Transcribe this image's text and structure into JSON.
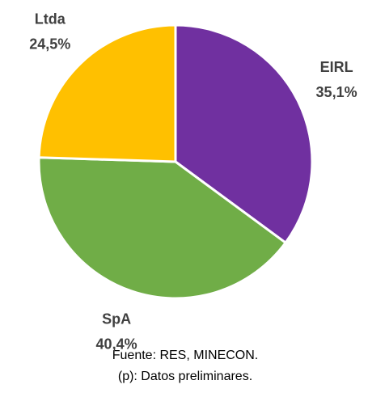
{
  "chart_data": {
    "type": "pie",
    "categories": [
      "EIRL",
      "SpA",
      "Ltda"
    ],
    "values": [
      35.1,
      40.4,
      24.5
    ],
    "value_labels": [
      "35,1%",
      "40,4%",
      "24,5%"
    ],
    "colors": [
      "#7030a0",
      "#70ad47",
      "#ffc000"
    ],
    "notes": [
      "Fuente: RES, MINECON.",
      "(p): Datos preliminares."
    ]
  }
}
